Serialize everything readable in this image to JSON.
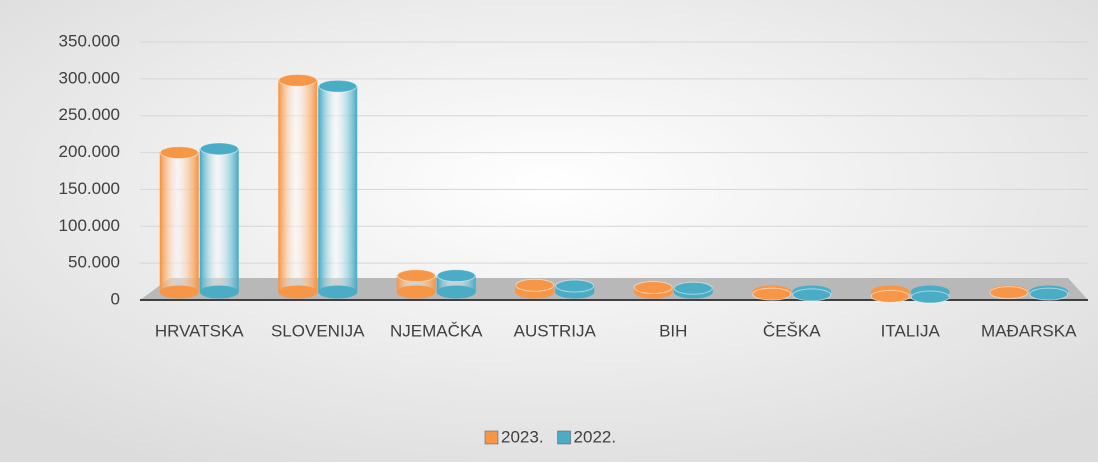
{
  "chart_data": {
    "type": "bar",
    "categories": [
      "HRVATSKA",
      "SLOVENIJA",
      "NJEMAČKA",
      "AUSTRIJA",
      "BIH",
      "ČEŠKA",
      "ITALIJA",
      "MAĐARSKA"
    ],
    "series": [
      {
        "name": "2023.",
        "color": "#f79646",
        "values": [
          200000,
          298000,
          33000,
          20000,
          17000,
          8000,
          5000,
          10000
        ]
      },
      {
        "name": "2022.",
        "color": "#4bacc6",
        "values": [
          205000,
          290000,
          33000,
          19000,
          16000,
          7000,
          4000,
          8000
        ]
      }
    ],
    "ylim": [
      0,
      350000
    ],
    "yticks": [
      0,
      {
        "value": 50000,
        "label": "50.000"
      },
      {
        "value": 100000,
        "label": "100.000"
      },
      {
        "value": 150000,
        "label": "150.000"
      },
      {
        "value": 200000,
        "label": "200.000"
      },
      {
        "value": 250000,
        "label": "250.000"
      },
      {
        "value": 300000,
        "label": "300.000"
      },
      {
        "value": 350000,
        "label": "350.000"
      }
    ],
    "grid": true,
    "legend": "bottom"
  }
}
